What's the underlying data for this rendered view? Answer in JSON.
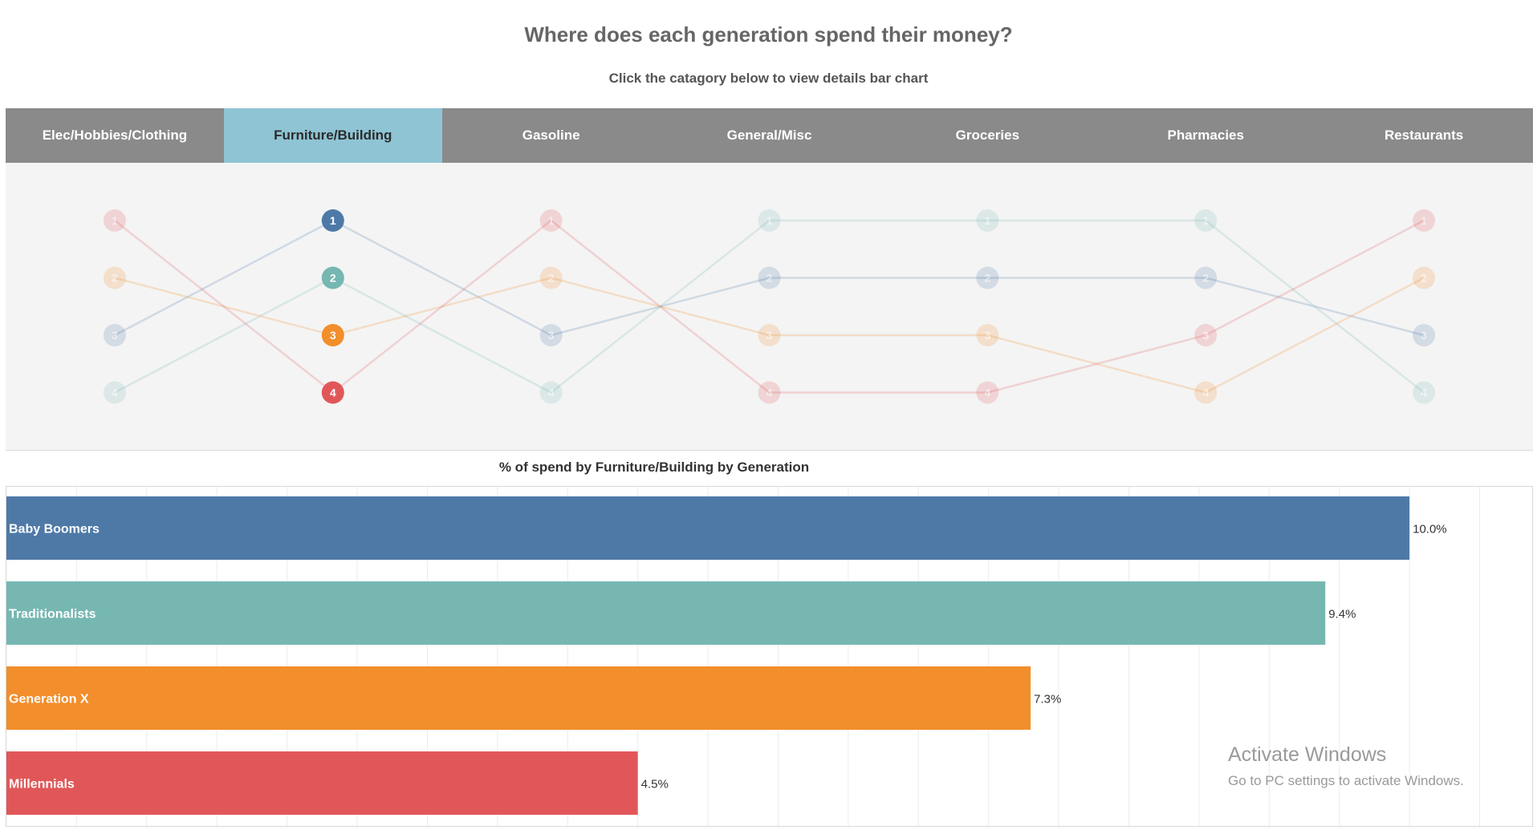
{
  "header": {
    "title": "Where does each generation spend their money?",
    "subtitle": "Click the catagory below to view details bar chart"
  },
  "tabs": [
    {
      "label": "Elec/Hobbies/Clothing",
      "selected": false
    },
    {
      "label": "Furniture/Building",
      "selected": true
    },
    {
      "label": "Gasoline",
      "selected": false
    },
    {
      "label": "General/Misc",
      "selected": false
    },
    {
      "label": "Groceries",
      "selected": false
    },
    {
      "label": "Pharmacies",
      "selected": false
    },
    {
      "label": "Restaurants",
      "selected": false
    }
  ],
  "colors": {
    "Baby Boomers": "#4e79a7",
    "Traditionalists": "#76b7b2",
    "Generation X": "#f28e2b",
    "Millennials": "#e15759",
    "tab_bg": "#8a8a8a",
    "tab_selected": "#8fc4d4"
  },
  "chart_data": [
    {
      "type": "bump",
      "categories": [
        "Elec/Hobbies/Clothing",
        "Furniture/Building",
        "Gasoline",
        "General/Misc",
        "Groceries",
        "Pharmacies",
        "Restaurants"
      ],
      "highlighted_category": "Furniture/Building",
      "series": [
        {
          "name": "Baby Boomers",
          "ranks": [
            3,
            1,
            3,
            2,
            2,
            2,
            3
          ]
        },
        {
          "name": "Traditionalists",
          "ranks": [
            4,
            2,
            4,
            1,
            1,
            1,
            4
          ]
        },
        {
          "name": "Generation X",
          "ranks": [
            2,
            3,
            2,
            3,
            3,
            4,
            2
          ]
        },
        {
          "name": "Millennials",
          "ranks": [
            1,
            4,
            1,
            4,
            4,
            3,
            1
          ]
        }
      ]
    },
    {
      "type": "bar",
      "title": "% of spend by Furniture/Building by Generation",
      "categories": [
        "Baby Boomers",
        "Traditionalists",
        "Generation X",
        "Millennials"
      ],
      "values": [
        10.0,
        9.4,
        7.3,
        4.5
      ],
      "value_labels": [
        "10.0%",
        "9.4%",
        "7.3%",
        "4.5%"
      ],
      "xlim": [
        0,
        10.6
      ],
      "grid": true
    }
  ],
  "watermark": {
    "line1": "Activate Windows",
    "line2": "Go to PC settings to activate Windows."
  }
}
